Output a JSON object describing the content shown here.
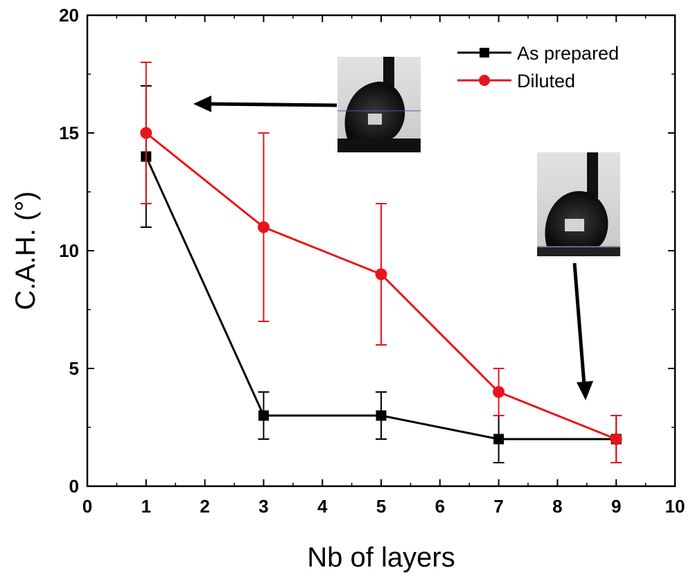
{
  "chart_data": {
    "type": "line",
    "xlabel": "Nb of layers",
    "ylabel": "C.A.H. (°)",
    "xlim": [
      0,
      10
    ],
    "ylim": [
      0,
      20
    ],
    "xticks": [
      0,
      1,
      2,
      3,
      4,
      5,
      6,
      7,
      8,
      9,
      10
    ],
    "yticks": [
      0,
      5,
      10,
      15,
      20
    ],
    "grid": false,
    "legend_position": "top-right",
    "series": [
      {
        "name": "As prepared",
        "color": "#000000",
        "marker": "square",
        "x": [
          1,
          3,
          5,
          7,
          9
        ],
        "y": [
          14,
          3,
          3,
          2,
          2
        ],
        "err": [
          3,
          1,
          1,
          1,
          1
        ]
      },
      {
        "name": "Diluted",
        "color": "#e8141b",
        "marker": "circle",
        "x": [
          1,
          3,
          5,
          7,
          9
        ],
        "y": [
          15,
          11,
          9,
          4,
          2
        ],
        "err": [
          3,
          4,
          3,
          1,
          1
        ]
      }
    ],
    "annotations": [
      {
        "type": "droplet-image",
        "points_to": [
          1,
          15
        ]
      },
      {
        "type": "droplet-image",
        "points_to": [
          9,
          2
        ]
      }
    ]
  }
}
